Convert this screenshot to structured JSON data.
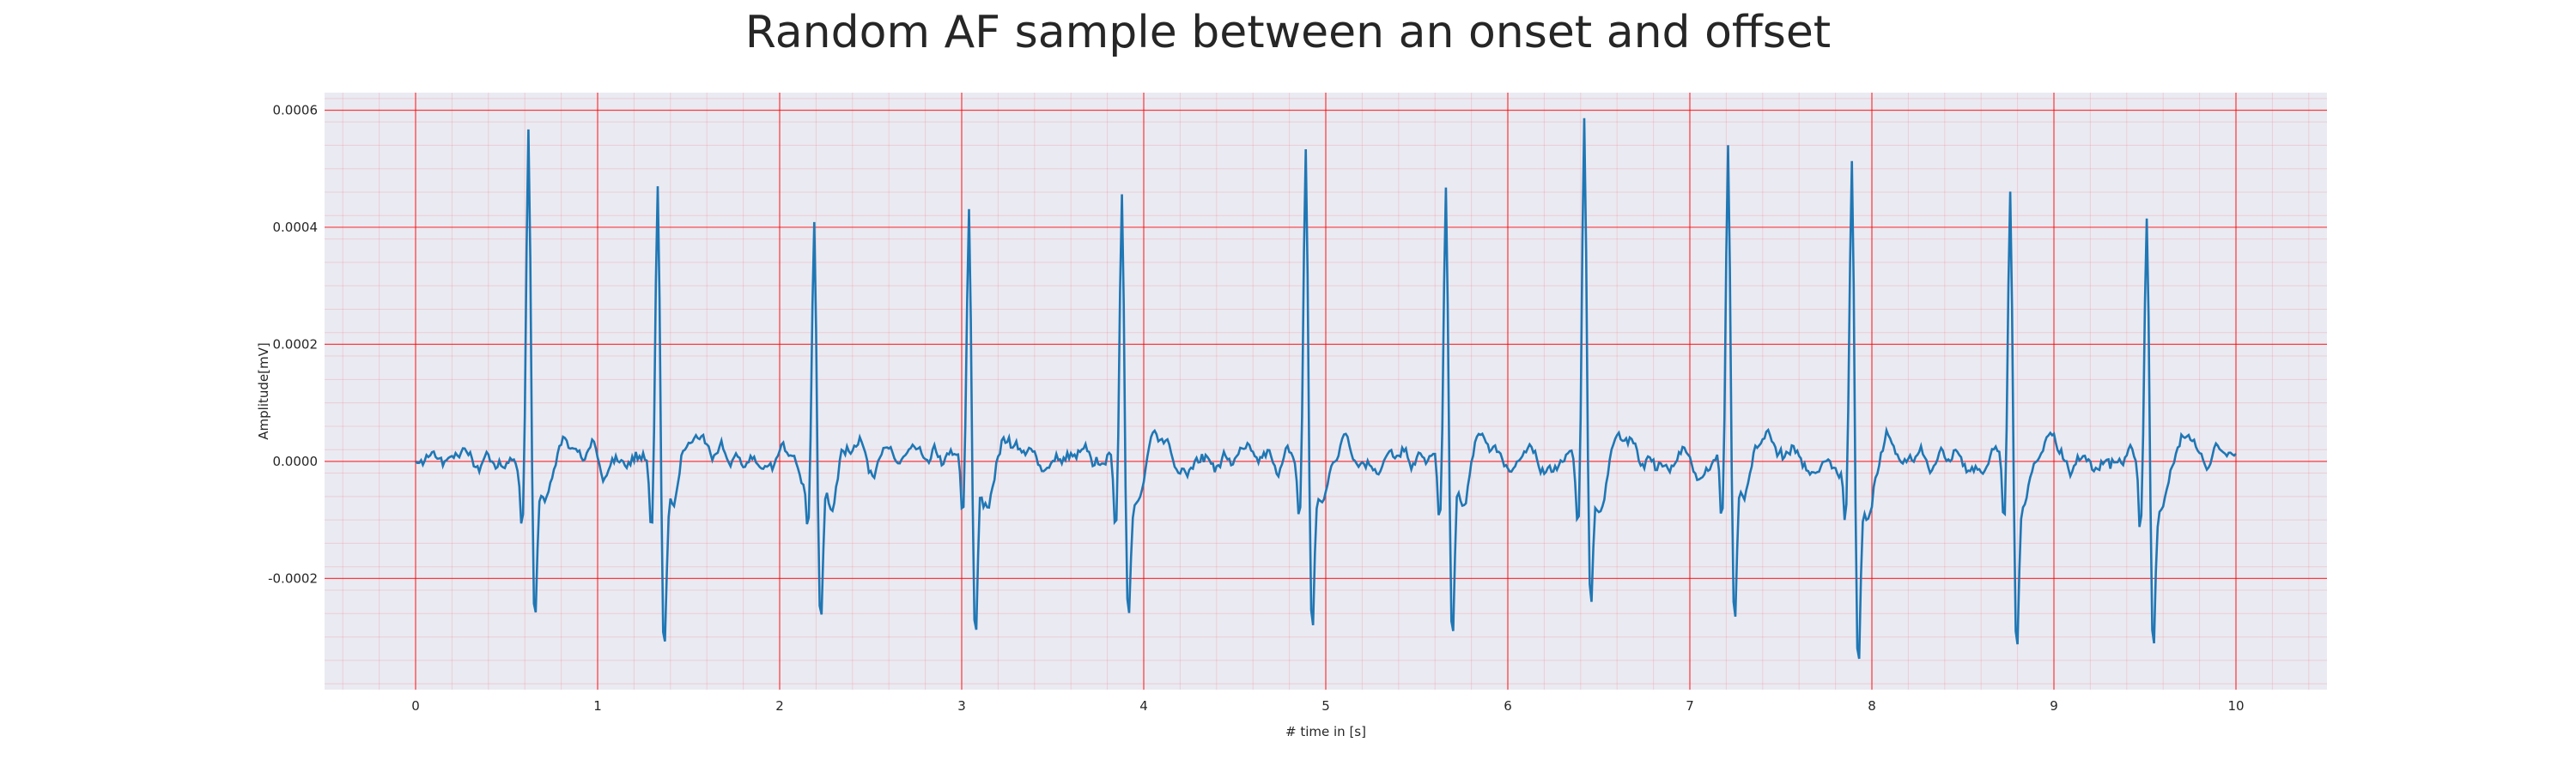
{
  "chart_data": {
    "type": "line",
    "title": "Random AF sample between an onset and offset",
    "xlabel": "# time in [s]",
    "ylabel": "Amplitude[mV]",
    "xlim": [
      -0.5,
      10.5
    ],
    "ylim": [
      -0.00039,
      0.00063
    ],
    "xticks": [
      0,
      1,
      2,
      3,
      4,
      5,
      6,
      7,
      8,
      9,
      10
    ],
    "xtick_labels": [
      "0",
      "1",
      "2",
      "3",
      "4",
      "5",
      "6",
      "7",
      "8",
      "9",
      "10"
    ],
    "yticks": [
      -0.0002,
      0.0,
      0.0002,
      0.0004,
      0.0006
    ],
    "ytick_labels": [
      "-0.0002",
      "0.0000",
      "0.0002",
      "0.0004",
      "0.0006"
    ],
    "grid": true,
    "grid_color": "#ff0000",
    "background_color": "#eaeaf2",
    "series": [
      {
        "color": "#1f77b4",
        "sample_rate_hz": 100,
        "beats": [
          {
            "t": 0.62,
            "peak": 0.00057,
            "trough": -0.00028
          },
          {
            "t": 1.33,
            "peak": 0.00047,
            "trough": -0.00031
          },
          {
            "t": 2.19,
            "peak": 0.00042,
            "trough": -0.00027
          },
          {
            "t": 3.04,
            "peak": 0.00044,
            "trough": -0.0003
          },
          {
            "t": 3.88,
            "peak": 0.00047,
            "trough": -0.00023
          },
          {
            "t": 4.89,
            "peak": 0.00054,
            "trough": -0.00028
          },
          {
            "t": 5.66,
            "peak": 0.00046,
            "trough": -0.00031
          },
          {
            "t": 6.42,
            "peak": 0.00058,
            "trough": -0.00024
          },
          {
            "t": 7.21,
            "peak": 0.00055,
            "trough": -0.00028
          },
          {
            "t": 7.89,
            "peak": 0.00051,
            "trough": -0.00034
          },
          {
            "t": 8.76,
            "peak": 0.0005,
            "trough": -0.0003
          },
          {
            "t": 9.51,
            "peak": 0.00043,
            "trough": -0.00031
          }
        ]
      }
    ]
  }
}
